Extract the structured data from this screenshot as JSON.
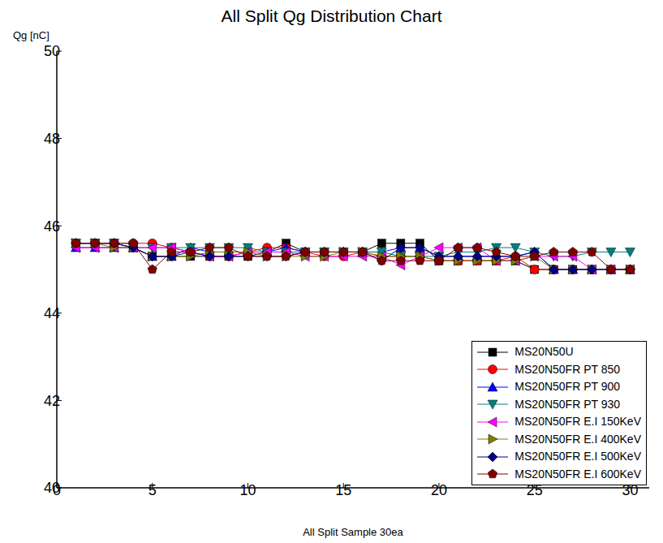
{
  "chart_data": {
    "type": "line",
    "title": "All Split Qg Distribution Chart",
    "x_label": "All Split Sample 30ea",
    "y_label": "Qg [nC]",
    "x": [
      1,
      2,
      3,
      4,
      5,
      6,
      7,
      8,
      9,
      10,
      11,
      12,
      13,
      14,
      15,
      16,
      17,
      18,
      19,
      20,
      21,
      22,
      23,
      24,
      25,
      26,
      27,
      28,
      29,
      30
    ],
    "xlim": [
      0,
      31
    ],
    "xticks": [
      0,
      5,
      10,
      15,
      20,
      25,
      30
    ],
    "ylim": [
      40,
      50
    ],
    "yticks": [
      40,
      42,
      44,
      46,
      48,
      50
    ],
    "grid": false,
    "legend": "lower right",
    "series": [
      {
        "name": "MS20N50U",
        "color": "#000000",
        "marker": "square",
        "values": [
          45.6,
          45.6,
          45.6,
          45.5,
          45.3,
          45.3,
          45.3,
          45.3,
          45.3,
          45.3,
          45.4,
          45.6,
          45.4,
          45.4,
          45.4,
          45.4,
          45.6,
          45.6,
          45.6,
          45.2,
          45.2,
          45.2,
          45.2,
          45.2,
          45.0,
          45.0,
          45.0,
          45.0,
          45.0,
          45.0
        ]
      },
      {
        "name": "MS20N50FR PT 850",
        "color": "#ff0000",
        "marker": "circle",
        "values": [
          45.6,
          45.6,
          45.6,
          45.6,
          45.6,
          45.5,
          45.4,
          45.3,
          45.3,
          45.4,
          45.5,
          45.5,
          45.4,
          45.3,
          45.3,
          45.4,
          45.3,
          45.3,
          45.3,
          45.2,
          45.2,
          45.2,
          45.2,
          45.3,
          45.0,
          45.0,
          45.0,
          45.0,
          45.0,
          45.0
        ]
      },
      {
        "name": "MS20N50FR PT 900",
        "color": "#0000ff",
        "marker": "triangle-up",
        "values": [
          45.5,
          45.5,
          45.5,
          45.5,
          45.3,
          45.3,
          45.5,
          45.4,
          45.4,
          45.4,
          45.4,
          45.5,
          45.4,
          45.4,
          45.4,
          45.4,
          45.4,
          45.5,
          45.5,
          45.3,
          45.3,
          45.3,
          45.3,
          45.3,
          45.4,
          45.0,
          45.0,
          45.0,
          45.0,
          45.0
        ]
      },
      {
        "name": "MS20N50FR PT 930",
        "color": "#008080",
        "marker": "triangle-down",
        "values": [
          45.6,
          45.6,
          45.6,
          45.5,
          45.5,
          45.5,
          45.5,
          45.5,
          45.5,
          45.5,
          45.4,
          45.4,
          45.4,
          45.4,
          45.4,
          45.4,
          45.4,
          45.3,
          45.3,
          45.3,
          45.4,
          45.4,
          45.5,
          45.5,
          45.4,
          45.3,
          45.3,
          45.4,
          45.4,
          45.4
        ]
      },
      {
        "name": "MS20N50FR E.I 150KeV",
        "color": "#ff00ff",
        "marker": "triangle-left",
        "values": [
          45.5,
          45.5,
          45.5,
          45.5,
          45.5,
          45.5,
          45.4,
          45.3,
          45.3,
          45.4,
          45.4,
          45.4,
          45.3,
          45.3,
          45.3,
          45.3,
          45.3,
          45.1,
          45.3,
          45.5,
          45.5,
          45.5,
          45.2,
          45.2,
          45.3,
          45.3,
          45.3,
          45.0,
          45.0,
          45.0
        ]
      },
      {
        "name": "MS20N50FR E.I 400KeV",
        "color": "#808000",
        "marker": "triangle-right",
        "values": [
          45.6,
          45.6,
          45.5,
          45.5,
          45.3,
          45.3,
          45.3,
          45.4,
          45.4,
          45.4,
          45.3,
          45.3,
          45.3,
          45.3,
          45.4,
          45.4,
          45.3,
          45.3,
          45.3,
          45.2,
          45.2,
          45.2,
          45.2,
          45.2,
          45.3,
          45.0,
          45.0,
          45.0,
          45.0,
          45.0
        ]
      },
      {
        "name": "MS20N50FR E.I 500KeV",
        "color": "#000080",
        "marker": "diamond",
        "values": [
          45.6,
          45.6,
          45.6,
          45.5,
          45.3,
          45.3,
          45.4,
          45.3,
          45.3,
          45.3,
          45.3,
          45.3,
          45.4,
          45.4,
          45.4,
          45.4,
          45.2,
          45.5,
          45.5,
          45.3,
          45.3,
          45.3,
          45.3,
          45.3,
          45.4,
          45.0,
          45.0,
          45.0,
          45.0,
          45.0
        ]
      },
      {
        "name": "MS20N50FR E.I 600KeV",
        "color": "#800000",
        "marker": "pentagon",
        "values": [
          45.6,
          45.6,
          45.6,
          45.6,
          45.0,
          45.4,
          45.4,
          45.5,
          45.5,
          45.3,
          45.3,
          45.3,
          45.4,
          45.4,
          45.4,
          45.4,
          45.2,
          45.2,
          45.2,
          45.2,
          45.5,
          45.5,
          45.4,
          45.3,
          45.3,
          45.4,
          45.4,
          45.4,
          45.0,
          45.0
        ]
      }
    ]
  }
}
